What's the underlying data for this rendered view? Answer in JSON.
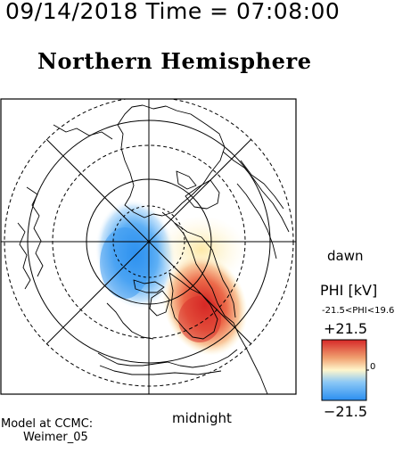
{
  "header": {
    "timestamp": "09/14/2018 Time = 07:08:00",
    "title": "Northern Hemisphere"
  },
  "map": {
    "projection": "polar-stereographic",
    "hemisphere": "north",
    "orientation": {
      "dawn": "dawn",
      "midnight": "midnight"
    },
    "parameter": "electric potential",
    "features": [
      "coastlines",
      "latitude-circles",
      "longitude-lines"
    ]
  },
  "legend": {
    "label": "PHI [kV]",
    "range_text": "-21.5<PHI<19.6",
    "max_label": "+21.5",
    "mid_label": "0",
    "min_label": "−21.5",
    "colors": {
      "positive": "#d62828",
      "zero": "#fff6cc",
      "negative": "#2a8ef0"
    }
  },
  "footer": {
    "model_line1": "Model at CCMC:",
    "model_line2": "Weimer_05"
  }
}
